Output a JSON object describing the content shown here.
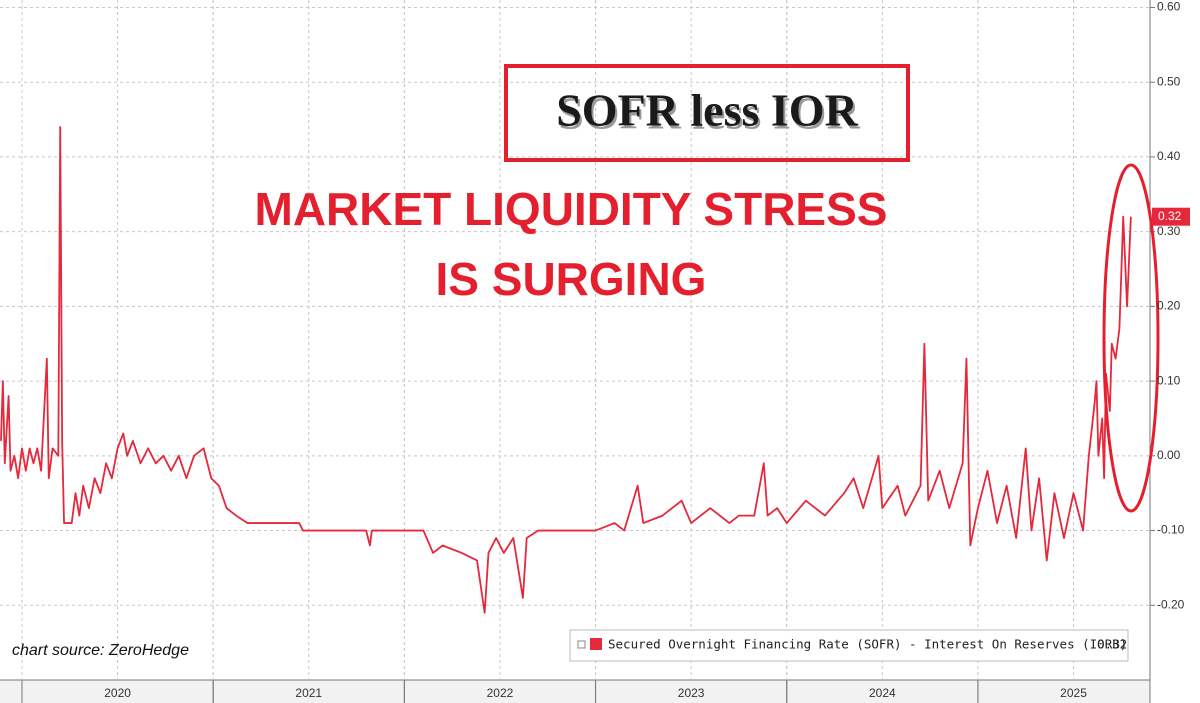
{
  "chart_data": {
    "type": "line",
    "title": "SOFR less IOR",
    "annotations": [
      "MARKET LIQUIDITY STRESS",
      "IS SURGING"
    ],
    "source": "chart source: ZeroHedge",
    "last_value": 0.32,
    "series": [
      {
        "name": "Secured Overnight Financing Rate (SOFR) - Interest On Reserves (IORB)",
        "color": "#e5283b",
        "x": [
          2019.89,
          2019.9,
          2019.91,
          2019.93,
          2019.94,
          2019.96,
          2019.98,
          2020.0,
          2020.02,
          2020.04,
          2020.06,
          2020.08,
          2020.1,
          2020.13,
          2020.14,
          2020.16,
          2020.19,
          2020.2,
          2020.21,
          2020.22,
          2020.26,
          2020.28,
          2020.3,
          2020.32,
          2020.35,
          2020.38,
          2020.41,
          2020.44,
          2020.47,
          2020.5,
          2020.53,
          2020.55,
          2020.58,
          2020.62,
          2020.66,
          2020.7,
          2020.74,
          2020.78,
          2020.82,
          2020.86,
          2020.9,
          2020.95,
          2020.99,
          2021.03,
          2021.07,
          2021.12,
          2021.18,
          2021.45,
          2021.47,
          2021.8,
          2021.82,
          2021.83,
          2022.0,
          2022.1,
          2022.15,
          2022.2,
          2022.3,
          2022.38,
          2022.42,
          2022.44,
          2022.48,
          2022.52,
          2022.57,
          2022.62,
          2022.64,
          2022.7,
          2022.9,
          2023.0,
          2023.1,
          2023.15,
          2023.22,
          2023.25,
          2023.35,
          2023.45,
          2023.5,
          2023.6,
          2023.7,
          2023.75,
          2023.83,
          2023.88,
          2023.9,
          2023.95,
          2024.0,
          2024.1,
          2024.2,
          2024.3,
          2024.35,
          2024.4,
          2024.48,
          2024.5,
          2024.58,
          2024.62,
          2024.7,
          2024.72,
          2024.74,
          2024.8,
          2024.85,
          2024.92,
          2024.94,
          2024.96,
          2025.0,
          2025.05,
          2025.1,
          2025.15,
          2025.2,
          2025.25,
          2025.28,
          2025.32,
          2025.36,
          2025.4,
          2025.45,
          2025.5,
          2025.55,
          2025.58,
          2025.61,
          2025.62,
          2025.63,
          2025.65,
          2025.66,
          2025.67,
          2025.69,
          2025.7,
          2025.72,
          2025.74,
          2025.76,
          2025.78,
          2025.8
        ],
        "values": [
          0.02,
          0.1,
          -0.01,
          0.08,
          -0.02,
          0.0,
          -0.03,
          0.01,
          -0.02,
          0.01,
          -0.01,
          0.01,
          -0.02,
          0.13,
          -0.03,
          0.01,
          0.0,
          0.44,
          0.02,
          -0.09,
          -0.09,
          -0.05,
          -0.08,
          -0.04,
          -0.07,
          -0.03,
          -0.05,
          -0.01,
          -0.03,
          0.01,
          0.03,
          0.0,
          0.02,
          -0.01,
          0.01,
          -0.01,
          0.0,
          -0.02,
          0.0,
          -0.03,
          0.0,
          0.01,
          -0.03,
          -0.04,
          -0.07,
          -0.08,
          -0.09,
          -0.09,
          -0.1,
          -0.1,
          -0.12,
          -0.1,
          -0.1,
          -0.1,
          -0.13,
          -0.12,
          -0.13,
          -0.14,
          -0.21,
          -0.13,
          -0.11,
          -0.13,
          -0.11,
          -0.19,
          -0.11,
          -0.1,
          -0.1,
          -0.1,
          -0.09,
          -0.1,
          -0.04,
          -0.09,
          -0.08,
          -0.06,
          -0.09,
          -0.07,
          -0.09,
          -0.08,
          -0.08,
          -0.01,
          -0.08,
          -0.07,
          -0.09,
          -0.06,
          -0.08,
          -0.05,
          -0.03,
          -0.07,
          0.0,
          -0.07,
          -0.04,
          -0.08,
          -0.04,
          0.15,
          -0.06,
          -0.02,
          -0.07,
          -0.01,
          0.13,
          -0.12,
          -0.07,
          -0.02,
          -0.09,
          -0.04,
          -0.11,
          0.01,
          -0.1,
          -0.03,
          -0.14,
          -0.05,
          -0.11,
          -0.05,
          -0.1,
          0.0,
          0.07,
          0.1,
          0.0,
          0.05,
          -0.03,
          0.11,
          0.06,
          0.15,
          0.13,
          0.17,
          0.32,
          0.2,
          0.32
        ]
      }
    ],
    "xlim": [
      2019.885,
      2025.9
    ],
    "xticks": [
      {
        "value": 2020.5,
        "label": "2020"
      },
      {
        "value": 2021.5,
        "label": "2021"
      },
      {
        "value": 2022.5,
        "label": "2022"
      },
      {
        "value": 2023.5,
        "label": "2023"
      },
      {
        "value": 2024.5,
        "label": "2024"
      },
      {
        "value": 2025.5,
        "label": "2025"
      }
    ],
    "ylim": [
      -0.3,
      0.61
    ],
    "yticks": [
      {
        "value": 0.6,
        "label": "0.60"
      },
      {
        "value": 0.5,
        "label": "0.50"
      },
      {
        "value": 0.4,
        "label": "0.40"
      },
      {
        "value": 0.3,
        "label": "0.30"
      },
      {
        "value": 0.2,
        "label": "0.20"
      },
      {
        "value": 0.1,
        "label": "0.10"
      },
      {
        "value": 0,
        "label": "0.00"
      },
      {
        "value": -0.1,
        "label": "-0.10"
      },
      {
        "value": -0.2,
        "label": "-0.20"
      }
    ],
    "grid": true
  }
}
